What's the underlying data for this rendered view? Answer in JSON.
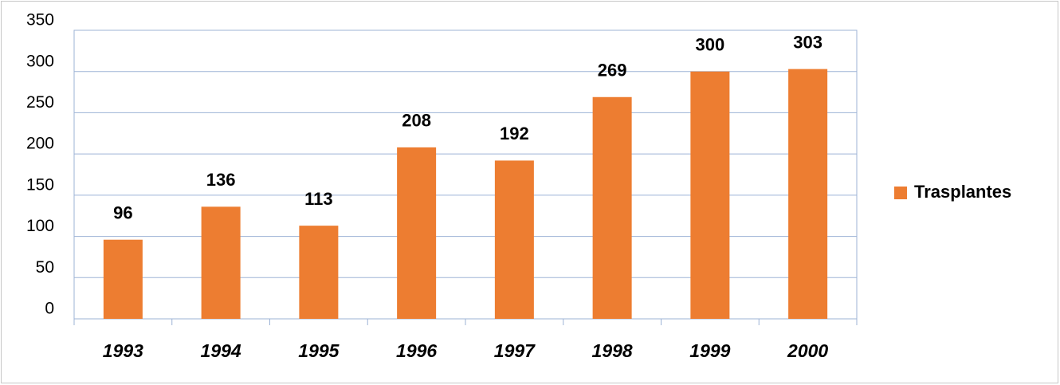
{
  "chart_data": {
    "type": "bar",
    "categories": [
      "1993",
      "1994",
      "1995",
      "1996",
      "1997",
      "1998",
      "1999",
      "2000"
    ],
    "series": [
      {
        "name": "Trasplantes",
        "color": "#ed7d31",
        "values": [
          96,
          136,
          113,
          208,
          192,
          269,
          300,
          303
        ]
      }
    ],
    "ylim": [
      0,
      350
    ],
    "yticks": [
      0,
      50,
      100,
      150,
      200,
      250,
      300,
      350
    ],
    "grid": true,
    "legend": "right"
  }
}
